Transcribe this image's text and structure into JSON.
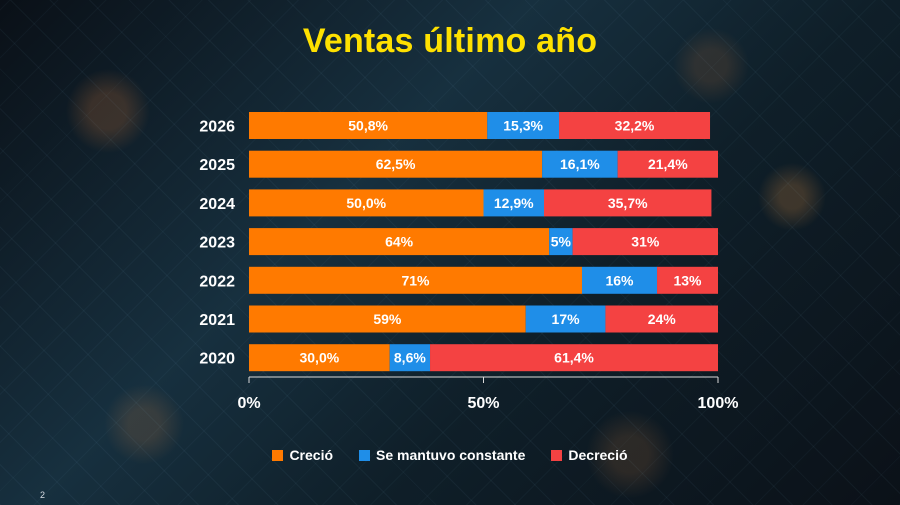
{
  "slide": {
    "number": "2"
  },
  "chart_data": {
    "type": "bar",
    "orientation": "horizontal",
    "stacked": true,
    "title": "Ventas último año",
    "categories": [
      "2026",
      "2025",
      "2024",
      "2023",
      "2022",
      "2021",
      "2020"
    ],
    "xlim": [
      0,
      100
    ],
    "x_ticks": [
      "0%",
      "50%",
      "100%"
    ],
    "grid": false,
    "legend_position": "bottom",
    "series": [
      {
        "name": "Creció",
        "color": "#ff7a00",
        "values": [
          50.8,
          62.5,
          50.0,
          64,
          71,
          59,
          30.0
        ],
        "labels": [
          "50,8%",
          "62,5%",
          "50,0%",
          "64%",
          "71%",
          "59%",
          "30,0%"
        ]
      },
      {
        "name": "Se mantuvo constante",
        "color": "#1f8ee8",
        "values": [
          15.3,
          16.1,
          12.9,
          5,
          16,
          17,
          8.6
        ],
        "labels": [
          "15,3%",
          "16,1%",
          "12,9%",
          "5%",
          "16%",
          "17%",
          "8,6%"
        ]
      },
      {
        "name": "Decreció",
        "color": "#f44242",
        "values": [
          32.2,
          21.4,
          35.7,
          31,
          13,
          24,
          61.4
        ],
        "labels": [
          "32,2%",
          "21,4%",
          "35,7%",
          "31%",
          "13%",
          "24%",
          "61,4%"
        ]
      }
    ]
  }
}
